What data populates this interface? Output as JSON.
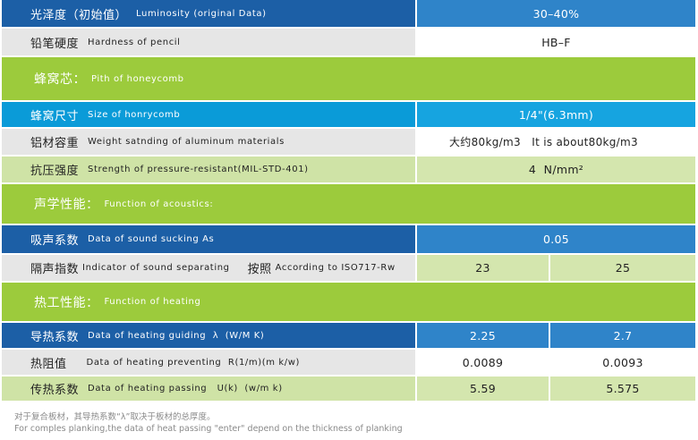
{
  "colors": {
    "dark_blue": "#1c5fa6",
    "light_blue": "#0a9bd8",
    "gray": "#e6e6e6",
    "light_green": "#cfe3a6",
    "green": "#9ccb3c"
  },
  "rows": {
    "luminosity": {
      "zh": "光泽度（初始值）",
      "en": "Luminosity (original Data)",
      "value": "30–40%"
    },
    "hardness": {
      "zh": "铅笔硬度",
      "en": "Hardness of pencil",
      "value": "HB–F"
    },
    "honeycomb_section": {
      "zh": "蜂窝芯：",
      "en": "Pith of honeycomb"
    },
    "comb_size": {
      "zh": "蜂窝尺寸",
      "en": "Size of honrycomb",
      "value": "1/4\"(6.3mm)"
    },
    "aluminum_weight": {
      "zh": "铝材容重",
      "en": "Weight satnding of aluminum materials",
      "value": "大约80kg/m3   It is about80kg/m3"
    },
    "pressure": {
      "zh": "抗压强度",
      "en": "Strength of pressure-resistant(MIL-STD-401)",
      "value": "4  N/mm²"
    },
    "acoustic_section": {
      "zh": "声学性能：",
      "en": "Function of acoustics:"
    },
    "sound_sucking": {
      "zh": "吸声系数",
      "en": "Data of sound sucking As",
      "value": "0.05"
    },
    "sound_separating": {
      "zh": "隔声指数",
      "en": "Indicator of sound separating",
      "zh2": "按照",
      "en2": "According to ISO717-Rw",
      "value_a": "23",
      "value_b": "25"
    },
    "heating_section": {
      "zh": "热工性能：",
      "en": "Function of heating"
    },
    "heat_guiding": {
      "zh": "导热系数",
      "en": "Data of heating guiding  λ  (W/M K)",
      "value_a": "2.25",
      "value_b": "2.7"
    },
    "heat_preventing": {
      "zh": "热阻值",
      "en": "Data of heating preventing  R(1/m)(m k/w)",
      "value_a": "0.0089",
      "value_b": "0.0093"
    },
    "heat_passing": {
      "zh": "传热系数",
      "en": "Data of heating passing   U(k)  (w/m k)",
      "value_a": "5.59",
      "value_b": "5.575"
    }
  },
  "footnote": {
    "zh": "对于复合板材，其导热系数“λ”取决于板材的总厚度。",
    "en": "For comples planking,the data of heat passing \"enter\" depend on the thickness of planking"
  }
}
